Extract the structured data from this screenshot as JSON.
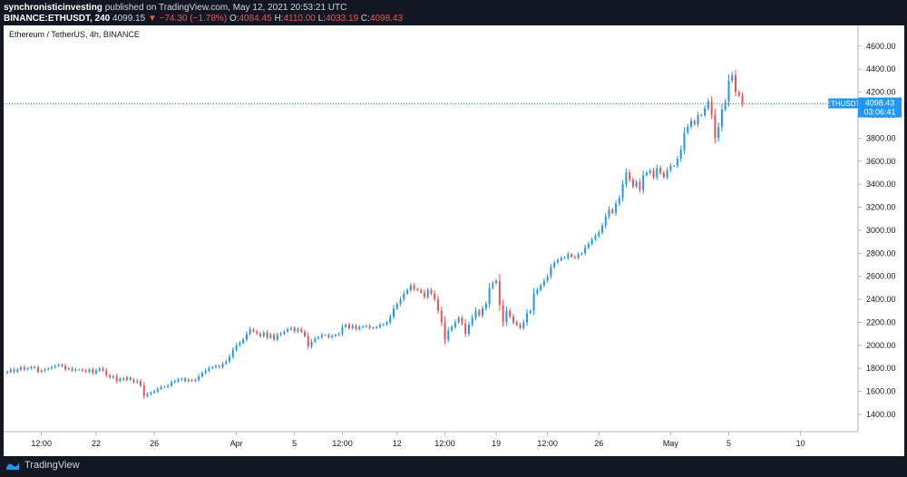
{
  "header": {
    "publisher": "synchronisticinvesting",
    "published_text": "published on TradingView.com, May 12, 2021 20:53:21 UTC",
    "symbol": "BINANCE:ETHUSDT, 240",
    "last": "4099.15",
    "change": "▼ −74.30 (−1.78%)",
    "o_label": "O:",
    "o_value": "4084.45",
    "h_label": "H:",
    "h_value": "4110.00",
    "l_label": "L:",
    "l_value": "4033.19",
    "c_label": "C:",
    "c_value": "4098.43"
  },
  "footer": {
    "brand": "TradingView"
  },
  "colors": {
    "up": "#2196f3",
    "down": "#ef5350",
    "background": "#131722",
    "price_tag": "#2196f3"
  },
  "chart_data": {
    "type": "candlestick",
    "title": "Ethereum / TetherUS, 4h, BINANCE",
    "symbol_tag": "ETHUSDT",
    "last_price": "4098.43",
    "last_price_value": 4098.43,
    "countdown": "03:06:41",
    "ylim": [
      1250,
      4780
    ],
    "yticks": [
      "4600.00",
      "4400.00",
      "4200.00",
      "4000.00",
      "3800.00",
      "3600.00",
      "3400.00",
      "3200.00",
      "3000.00",
      "2800.00",
      "2600.00",
      "2400.00",
      "2200.00",
      "2000.00",
      "1800.00",
      "1600.00",
      "1400.00"
    ],
    "xlabels": [
      {
        "label": "12:00",
        "bar": 10
      },
      {
        "label": "22",
        "bar": 26
      },
      {
        "label": "26",
        "bar": 43
      },
      {
        "label": "Apr",
        "bar": 67
      },
      {
        "label": "5",
        "bar": 84
      },
      {
        "label": "12:00",
        "bar": 98
      },
      {
        "label": "12",
        "bar": 114
      },
      {
        "label": "12:00",
        "bar": 128
      },
      {
        "label": "19",
        "bar": 143
      },
      {
        "label": "12:00",
        "bar": 158
      },
      {
        "label": "26",
        "bar": 173
      },
      {
        "label": "May",
        "bar": 194
      },
      {
        "label": "5",
        "bar": 211
      },
      {
        "label": "10",
        "bar": 232
      }
    ],
    "closes": [
      1770,
      1790,
      1770,
      1790,
      1810,
      1790,
      1800,
      1810,
      1810,
      1770,
      1780,
      1790,
      1800,
      1810,
      1820,
      1830,
      1820,
      1790,
      1800,
      1780,
      1790,
      1790,
      1780,
      1770,
      1790,
      1760,
      1780,
      1800,
      1780,
      1740,
      1720,
      1730,
      1690,
      1710,
      1700,
      1720,
      1700,
      1680,
      1690,
      1650,
      1560,
      1575,
      1590,
      1600,
      1620,
      1640,
      1640,
      1650,
      1680,
      1690,
      1700,
      1710,
      1690,
      1700,
      1690,
      1700,
      1730,
      1760,
      1780,
      1800,
      1810,
      1820,
      1810,
      1840,
      1860,
      1900,
      1960,
      2000,
      2020,
      2050,
      2100,
      2140,
      2120,
      2100,
      2080,
      2110,
      2070,
      2090,
      2050,
      2090,
      2100,
      2120,
      2140,
      2150,
      2120,
      2140,
      2120,
      2080,
      1990,
      2030,
      2060,
      2070,
      2090,
      2090,
      2070,
      2080,
      2090,
      2100,
      2160,
      2180,
      2150,
      2170,
      2140,
      2160,
      2160,
      2170,
      2150,
      2150,
      2160,
      2180,
      2180,
      2200,
      2250,
      2320,
      2360,
      2400,
      2450,
      2480,
      2520,
      2490,
      2480,
      2460,
      2420,
      2480,
      2450,
      2400,
      2300,
      2200,
      2050,
      2130,
      2160,
      2200,
      2240,
      2190,
      2100,
      2180,
      2240,
      2300,
      2260,
      2320,
      2360,
      2500,
      2540,
      2560,
      2350,
      2200,
      2300,
      2250,
      2200,
      2180,
      2150,
      2200,
      2280,
      2300,
      2450,
      2480,
      2520,
      2560,
      2600,
      2680,
      2720,
      2740,
      2760,
      2760,
      2790,
      2770,
      2760,
      2790,
      2800,
      2850,
      2880,
      2920,
      2950,
      2980,
      3040,
      3120,
      3180,
      3150,
      3230,
      3280,
      3400,
      3500,
      3440,
      3380,
      3420,
      3350,
      3480,
      3500,
      3520,
      3460,
      3540,
      3500,
      3460,
      3520,
      3560,
      3560,
      3620,
      3700,
      3850,
      3900,
      3950,
      3920,
      4000,
      4000,
      4060,
      4120,
      4000,
      3800,
      3900,
      4050,
      4120,
      4300,
      4350,
      4200,
      4170,
      4098
    ]
  }
}
